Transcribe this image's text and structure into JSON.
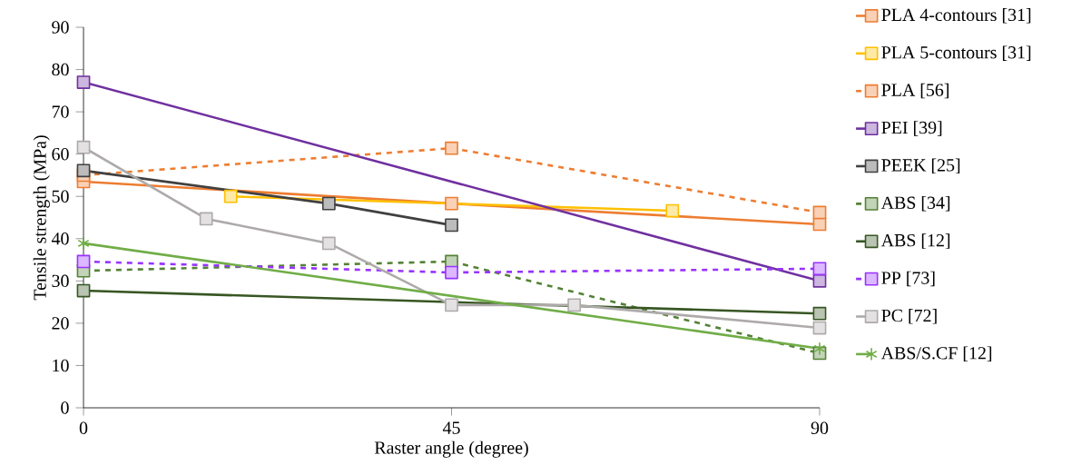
{
  "chart_data": {
    "type": "line",
    "xlabel": "Raster angle (degree)",
    "ylabel": "Tensile strength (MPa)",
    "xlim": [
      0,
      90
    ],
    "xticks": [
      0,
      45,
      90
    ],
    "ylim": [
      0,
      90
    ],
    "yticks": [
      0,
      10,
      20,
      30,
      40,
      50,
      60,
      70,
      80,
      90
    ],
    "grid": false,
    "legend": "right",
    "series": [
      {
        "name": "PLA 4-contours [31]",
        "color": "#ed7d31",
        "x": [
          0,
          45,
          90
        ],
        "values": [
          53.5,
          48.3,
          43.4
        ],
        "marker": "square",
        "line_style": "solid"
      },
      {
        "name": "PLA 5-contours [31]",
        "color": "#ffc000",
        "x": [
          18,
          72
        ],
        "values": [
          50,
          46.6
        ],
        "marker": "square",
        "line_style": "solid"
      },
      {
        "name": "PLA [56]",
        "color": "#ed7d31",
        "x": [
          0,
          45,
          90
        ],
        "values": [
          55,
          61.4,
          46.2
        ],
        "marker": "square",
        "line_style": "dashed"
      },
      {
        "name": "PEI [39]",
        "color": "#7030a0",
        "x": [
          0,
          90
        ],
        "values": [
          77,
          30
        ],
        "marker": "square",
        "line_style": "solid"
      },
      {
        "name": "PEEK [25]",
        "color": "#404040",
        "x": [
          0,
          30,
          45
        ],
        "values": [
          56.1,
          48.3,
          43.2
        ],
        "marker": "square",
        "line_style": "solid"
      },
      {
        "name": "ABS [34]",
        "color": "#548235",
        "x": [
          0,
          45,
          90
        ],
        "values": [
          32.4,
          34.6,
          12.9
        ],
        "marker": "square",
        "line_style": "dashed"
      },
      {
        "name": "ABS [12]",
        "color": "#375623",
        "x": [
          0,
          90
        ],
        "values": [
          27.7,
          22.3
        ],
        "marker": "square",
        "line_style": "solid"
      },
      {
        "name": "PP [73]",
        "color": "#9933ff",
        "x": [
          0,
          45,
          90
        ],
        "values": [
          34.6,
          32,
          32.9
        ],
        "marker": "square",
        "line_style": "dashed"
      },
      {
        "name": "PC [72]",
        "color": "#aeaaaa",
        "x": [
          0,
          15,
          30,
          45,
          60,
          90
        ],
        "values": [
          61.6,
          44.7,
          38.9,
          24.3,
          24.3,
          18.9
        ],
        "marker": "square",
        "line_style": "solid"
      },
      {
        "name": "ABS/S.CF [12]",
        "color": "#70ad47",
        "x": [
          0,
          90
        ],
        "values": [
          38.9,
          14
        ],
        "marker": "cross",
        "line_style": "solid"
      }
    ]
  }
}
